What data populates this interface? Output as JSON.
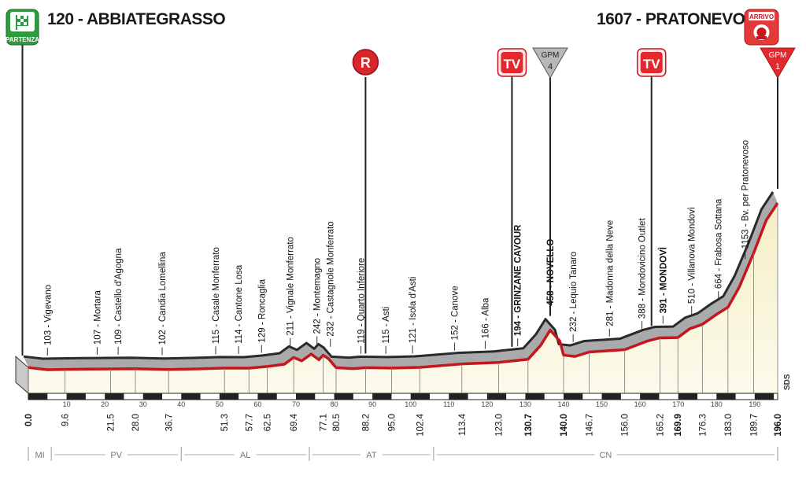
{
  "start": {
    "altitude": "120",
    "name": "ABBIATEGRASSO",
    "badge": "PARTENZA"
  },
  "finish": {
    "altitude": "1607",
    "name": "PRATONEVOSO",
    "badge": "ARRIVO"
  },
  "chart_data": {
    "type": "area",
    "xlabel": "",
    "ylabel": "",
    "xlim": [
      0,
      196
    ],
    "ylim": [
      0,
      1650
    ],
    "grid": false,
    "profile": [
      [
        0,
        120
      ],
      [
        5,
        100
      ],
      [
        9.6,
        103
      ],
      [
        15,
        105
      ],
      [
        21.5,
        107
      ],
      [
        28,
        109
      ],
      [
        36.7,
        102
      ],
      [
        45,
        108
      ],
      [
        51.3,
        115
      ],
      [
        57.7,
        114
      ],
      [
        62.5,
        129
      ],
      [
        67,
        150
      ],
      [
        69.4,
        211
      ],
      [
        71.5,
        180
      ],
      [
        74,
        242
      ],
      [
        76,
        190
      ],
      [
        77.1,
        232
      ],
      [
        78.5,
        200
      ],
      [
        80.5,
        119
      ],
      [
        85,
        110
      ],
      [
        88.2,
        119
      ],
      [
        95,
        115
      ],
      [
        102.4,
        121
      ],
      [
        113.4,
        152
      ],
      [
        123,
        166
      ],
      [
        130.7,
        194
      ],
      [
        134,
        320
      ],
      [
        136.5,
        458
      ],
      [
        139,
        360
      ],
      [
        140,
        232
      ],
      [
        143,
        220
      ],
      [
        146.7,
        260
      ],
      [
        156,
        281
      ],
      [
        162,
        360
      ],
      [
        165.2,
        388
      ],
      [
        169.9,
        391
      ],
      [
        173,
        470
      ],
      [
        176.3,
        510
      ],
      [
        180,
        600
      ],
      [
        183,
        664
      ],
      [
        186,
        850
      ],
      [
        189.7,
        1153
      ],
      [
        193,
        1450
      ],
      [
        196,
        1607
      ]
    ],
    "places": [
      {
        "name": "Vigevano",
        "km": 5,
        "alt": 103,
        "bold": false
      },
      {
        "name": "Mortara",
        "km": 18,
        "alt": 107,
        "bold": false
      },
      {
        "name": "Castello d'Agogna",
        "km": 23.5,
        "alt": 109,
        "bold": false
      },
      {
        "name": "Candia Lomellina",
        "km": 35,
        "alt": 102,
        "bold": false
      },
      {
        "name": "Casale Monferrato",
        "km": 49,
        "alt": 115,
        "bold": false
      },
      {
        "name": "Cantone Losa",
        "km": 55,
        "alt": 114,
        "bold": false
      },
      {
        "name": "Roncaglia",
        "km": 61,
        "alt": 129,
        "bold": false
      },
      {
        "name": "Vignale Monferrato",
        "km": 68.5,
        "alt": 211,
        "bold": false
      },
      {
        "name": "Montemagno",
        "km": 75.5,
        "alt": 242,
        "bold": false
      },
      {
        "name": "Castagnole Monferrato",
        "km": 79,
        "alt": 232,
        "bold": false
      },
      {
        "name": "Quarto Inferiore",
        "km": 87,
        "alt": 119,
        "bold": false
      },
      {
        "name": "Asti",
        "km": 93.5,
        "alt": 115,
        "bold": false
      },
      {
        "name": "Isola d'Asti",
        "km": 100.5,
        "alt": 121,
        "bold": false
      },
      {
        "name": "Canove",
        "km": 111.5,
        "alt": 152,
        "bold": false
      },
      {
        "name": "Alba",
        "km": 119.5,
        "alt": 166,
        "bold": false
      },
      {
        "name": "GRINZANE CAVOUR",
        "km": 128,
        "alt": 194,
        "bold": true
      },
      {
        "name": "NOVELLO",
        "km": 136.5,
        "alt": 458,
        "bold": true
      },
      {
        "name": "Lequio Tanaro",
        "km": 142.5,
        "alt": 232,
        "bold": false
      },
      {
        "name": "Madonna della Neve",
        "km": 152,
        "alt": 281,
        "bold": false
      },
      {
        "name": "Mondovicino Outlet",
        "km": 160.5,
        "alt": 388,
        "bold": false
      },
      {
        "name": "MONDOVÌ",
        "km": 166,
        "alt": 391,
        "bold": true
      },
      {
        "name": "Villanova Mondovì",
        "km": 173.5,
        "alt": 510,
        "bold": false
      },
      {
        "name": "Frabosa Sottana",
        "km": 180.5,
        "alt": 664,
        "bold": false
      },
      {
        "name": "Bv. per Pratonevoso",
        "km": 187.5,
        "alt": 1153,
        "bold": false
      }
    ],
    "km_marks": [
      {
        "label": "0.0",
        "km": 0,
        "bold": true
      },
      {
        "label": "9.6",
        "km": 9.6,
        "bold": false
      },
      {
        "label": "21.5",
        "km": 21.5,
        "bold": false
      },
      {
        "label": "28.0",
        "km": 28,
        "bold": false
      },
      {
        "label": "36.7",
        "km": 36.7,
        "bold": false
      },
      {
        "label": "51.3",
        "km": 51.3,
        "bold": false
      },
      {
        "label": "57.7",
        "km": 57.7,
        "bold": false
      },
      {
        "label": "62.5",
        "km": 62.5,
        "bold": false
      },
      {
        "label": "69.4",
        "km": 69.4,
        "bold": false
      },
      {
        "label": "77.1",
        "km": 77.1,
        "bold": false
      },
      {
        "label": "80.5",
        "km": 80.5,
        "bold": false
      },
      {
        "label": "88.2",
        "km": 88.2,
        "bold": false
      },
      {
        "label": "95.0",
        "km": 95,
        "bold": false
      },
      {
        "label": "102.4",
        "km": 102.4,
        "bold": false
      },
      {
        "label": "113.4",
        "km": 113.4,
        "bold": false
      },
      {
        "label": "123.0",
        "km": 123,
        "bold": false
      },
      {
        "label": "130.7",
        "km": 130.7,
        "bold": true
      },
      {
        "label": "140.0",
        "km": 140,
        "bold": true
      },
      {
        "label": "146.7",
        "km": 146.7,
        "bold": false
      },
      {
        "label": "156.0",
        "km": 156,
        "bold": false
      },
      {
        "label": "165.2",
        "km": 165.2,
        "bold": false
      },
      {
        "label": "169.9",
        "km": 169.9,
        "bold": true
      },
      {
        "label": "176.3",
        "km": 176.3,
        "bold": false
      },
      {
        "label": "183.0",
        "km": 183,
        "bold": false
      },
      {
        "label": "189.7",
        "km": 189.7,
        "bold": false
      },
      {
        "label": "196.0",
        "km": 196,
        "bold": true
      }
    ],
    "ruler_ticks": [
      10,
      20,
      30,
      40,
      50,
      60,
      70,
      80,
      90,
      100,
      110,
      120,
      130,
      140,
      150,
      160,
      170,
      180,
      190
    ],
    "provinces": [
      {
        "label": "MI",
        "from": 0,
        "to": 6
      },
      {
        "label": "PV",
        "from": 6,
        "to": 40
      },
      {
        "label": "AL",
        "from": 40,
        "to": 73.5
      },
      {
        "label": "AT",
        "from": 73.5,
        "to": 106
      },
      {
        "label": "CN",
        "from": 106,
        "to": 196
      }
    ],
    "markers": [
      {
        "type": "R",
        "label": "R",
        "km": 88.2
      },
      {
        "type": "TV",
        "label": "TV",
        "km": 126.5
      },
      {
        "type": "GPM",
        "label": "GPM",
        "category": "4",
        "km": 136.5
      },
      {
        "type": "TV",
        "label": "TV",
        "km": 163
      },
      {
        "type": "GPM",
        "label": "GPM",
        "category": "1",
        "km": 196
      }
    ],
    "side_label": "SDS",
    "colors": {
      "road": "#c4161c",
      "band": "#a9aaac",
      "band_edge": "#2a2a2a",
      "fill_top": "#f5efc6",
      "fill_bottom": "#fbf8e6",
      "badge_green": "#2f9a3f"
    }
  }
}
